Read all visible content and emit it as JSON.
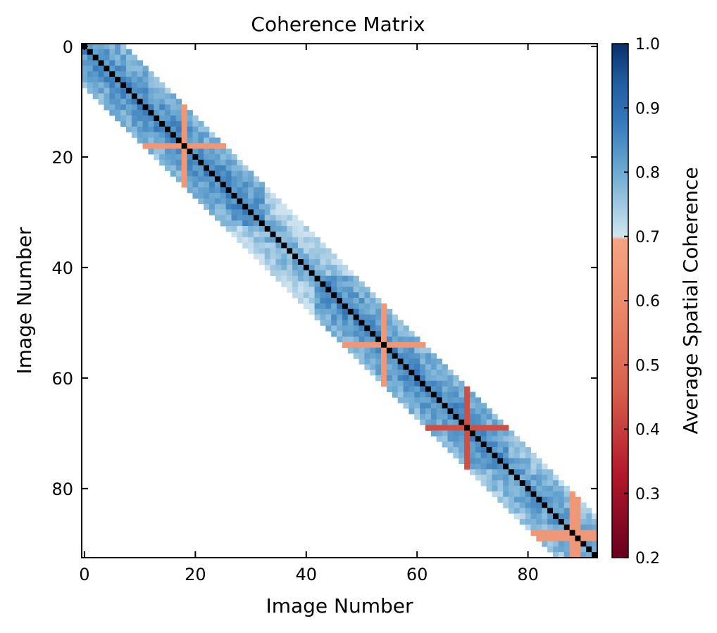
{
  "chart_data": {
    "type": "heatmap",
    "title": "Coherence Matrix",
    "xlabel": "Image Number",
    "ylabel": "Image Number",
    "n_images": 93,
    "xlim": [
      0,
      92
    ],
    "ylim": [
      0,
      92
    ],
    "x_ticks": [
      0,
      20,
      40,
      60,
      80
    ],
    "y_ticks": [
      0,
      20,
      40,
      60,
      80
    ],
    "band_halfwidth": 7,
    "diagonal_value": 1.0,
    "base_coherence": 0.86,
    "colorbar": {
      "label": "Average Spatial Coherence",
      "range": [
        0.2,
        1.0
      ],
      "ticks": [
        0.2,
        0.3,
        0.4,
        0.5,
        0.6,
        0.7,
        0.8,
        0.9,
        1.0
      ],
      "tick_labels": [
        "0.2",
        "0.3",
        "0.4",
        "0.5",
        "0.6",
        "0.7",
        "0.8",
        "0.9",
        "1.0"
      ],
      "colormap": "RdBu (diverging)"
    },
    "low_coherence_images": [
      {
        "image": 18,
        "value": 0.64
      },
      {
        "image": 54,
        "value": 0.64
      },
      {
        "image": 69,
        "value": 0.43
      },
      {
        "image": 88,
        "value": 0.64
      },
      {
        "image": 89,
        "value": 0.64
      }
    ],
    "grid": false,
    "colors": {
      "high": "#08306b",
      "mid_blue": "#4393c3",
      "light_blue": "#d1e5f0",
      "salmon": "#f4a582",
      "red": "#b2182b",
      "dark_red": "#67001f",
      "diagonal": "#000000"
    }
  }
}
